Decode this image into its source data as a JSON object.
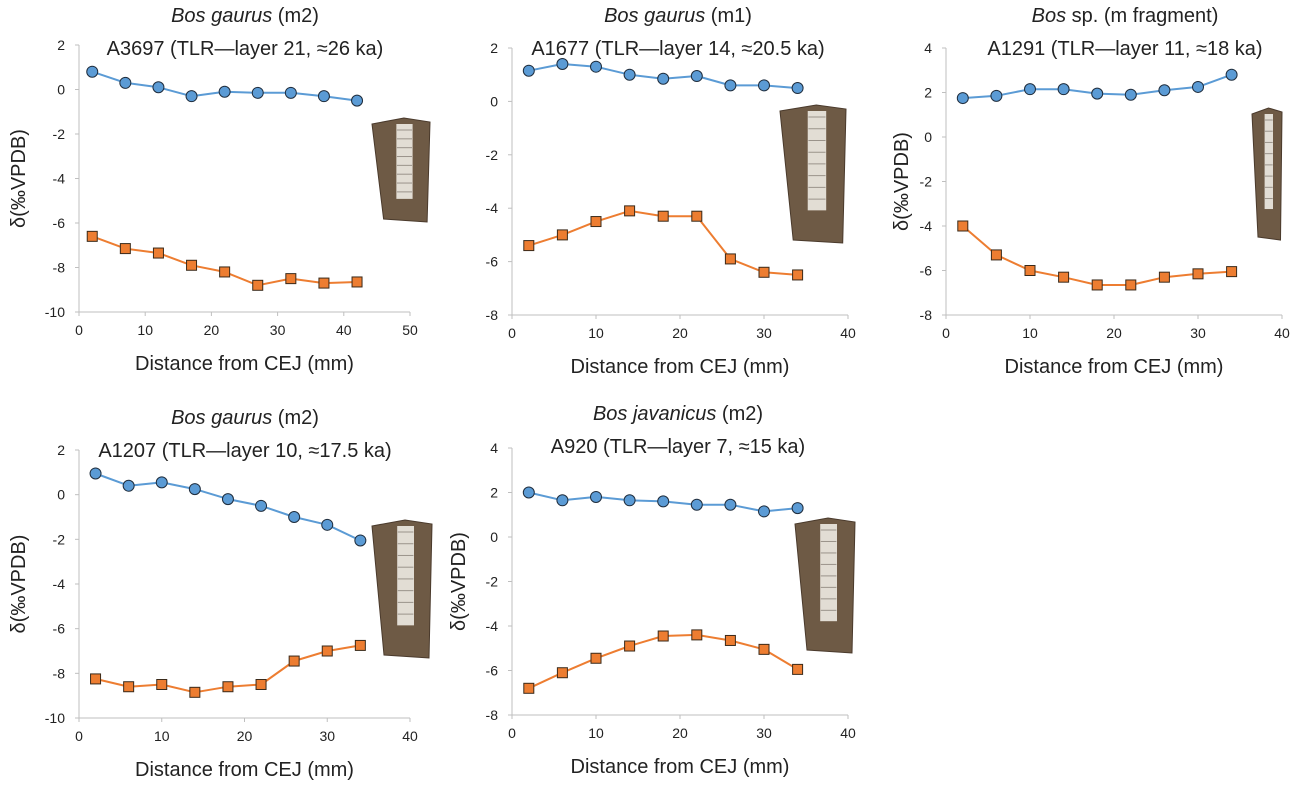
{
  "chart_data": [
    {
      "type": "line",
      "title_species": "Bos gaurus",
      "title_suffix": " (m2)",
      "subtitle": "A3697 (TLR—layer 21, ≈26 ka)",
      "xlabel": "Distance from CEJ (mm)",
      "ylabel": "δ(‰VPDB)",
      "xlim": [
        0,
        50
      ],
      "ylim": [
        -10,
        2
      ],
      "xticks": [
        0,
        10,
        20,
        30,
        40,
        50
      ],
      "yticks": [
        -10,
        -8,
        -6,
        -4,
        -2,
        0,
        2
      ],
      "x": [
        2,
        7,
        12,
        17,
        22,
        27,
        32,
        37,
        42
      ],
      "series": [
        {
          "marker": "circle",
          "color": "#5b9bd5",
          "values": [
            0.8,
            0.3,
            0.1,
            -0.3,
            -0.1,
            -0.15,
            -0.15,
            -0.3,
            -0.5
          ]
        },
        {
          "marker": "square",
          "color": "#ed7d31",
          "values": [
            -6.6,
            -7.15,
            -7.35,
            -7.9,
            -8.2,
            -8.8,
            -8.5,
            -8.7,
            -8.65
          ]
        }
      ]
    },
    {
      "type": "line",
      "title_species": "Bos gaurus",
      "title_suffix": " (m1)",
      "subtitle": "A1677 (TLR—layer 14, ≈20.5 ka)",
      "xlabel": "Distance from CEJ (mm)",
      "ylabel": "",
      "xlim": [
        0,
        40
      ],
      "ylim": [
        -8,
        2
      ],
      "xticks": [
        0,
        10,
        20,
        30,
        40
      ],
      "yticks": [
        -8,
        -6,
        -4,
        -2,
        0,
        2
      ],
      "x": [
        2,
        6,
        10,
        14,
        18,
        22,
        26,
        30,
        34
      ],
      "series": [
        {
          "marker": "circle",
          "color": "#5b9bd5",
          "values": [
            1.15,
            1.4,
            1.3,
            1.0,
            0.85,
            0.95,
            0.6,
            0.6,
            0.5
          ]
        },
        {
          "marker": "square",
          "color": "#ed7d31",
          "values": [
            -5.4,
            -5.0,
            -4.5,
            -4.1,
            -4.3,
            -4.3,
            -5.9,
            -6.4,
            -6.5
          ]
        }
      ]
    },
    {
      "type": "line",
      "title_species": "Bos",
      "title_suffix": " sp. (m fragment)",
      "subtitle": "A1291 (TLR—layer 11, ≈18 ka)",
      "xlabel": "Distance from CEJ (mm)",
      "ylabel": "δ(‰VPDB)",
      "xlim": [
        0,
        40
      ],
      "ylim": [
        -8,
        4
      ],
      "xticks": [
        0,
        10,
        20,
        30,
        40
      ],
      "yticks": [
        -8,
        -6,
        -4,
        -2,
        0,
        2,
        4
      ],
      "x": [
        2,
        6,
        10,
        14,
        18,
        22,
        26,
        30,
        34
      ],
      "series": [
        {
          "marker": "circle",
          "color": "#5b9bd5",
          "values": [
            1.75,
            1.85,
            2.15,
            2.15,
            1.95,
            1.9,
            2.1,
            2.25,
            2.8
          ]
        },
        {
          "marker": "square",
          "color": "#ed7d31",
          "values": [
            -4.0,
            -5.3,
            -6.0,
            -6.3,
            -6.65,
            -6.65,
            -6.3,
            -6.15,
            -6.05
          ]
        }
      ]
    },
    {
      "type": "line",
      "title_species": "Bos gaurus",
      "title_suffix": " (m2)",
      "subtitle": "A1207 (TLR—layer 10, ≈17.5 ka)",
      "xlabel": "Distance from CEJ (mm)",
      "ylabel": "δ(‰VPDB)",
      "xlim": [
        0,
        40
      ],
      "ylim": [
        -10,
        2
      ],
      "xticks": [
        0,
        10,
        20,
        30,
        40
      ],
      "yticks": [
        -10,
        -8,
        -6,
        -4,
        -2,
        0,
        2
      ],
      "x": [
        2,
        6,
        10,
        14,
        18,
        22,
        26,
        30,
        34
      ],
      "series": [
        {
          "marker": "circle",
          "color": "#5b9bd5",
          "values": [
            0.95,
            0.4,
            0.55,
            0.25,
            -0.2,
            -0.5,
            -1.0,
            -1.35,
            -2.05
          ]
        },
        {
          "marker": "square",
          "color": "#ed7d31",
          "values": [
            -8.25,
            -8.6,
            -8.5,
            -8.85,
            -8.6,
            -8.5,
            -7.45,
            -7.0,
            -6.75
          ]
        }
      ]
    },
    {
      "type": "line",
      "title_species": "Bos javanicus",
      "title_suffix": " (m2)",
      "subtitle": "A920 (TLR—layer 7, ≈15 ka)",
      "xlabel": "Distance from CEJ (mm)",
      "ylabel": "δ(‰VPDB)",
      "xlim": [
        0,
        40
      ],
      "ylim": [
        -8,
        4
      ],
      "xticks": [
        0,
        10,
        20,
        30,
        40
      ],
      "yticks": [
        -8,
        -6,
        -4,
        -2,
        0,
        2,
        4
      ],
      "x": [
        2,
        6,
        10,
        14,
        18,
        22,
        26,
        30,
        34
      ],
      "series": [
        {
          "marker": "circle",
          "color": "#5b9bd5",
          "values": [
            2.0,
            1.65,
            1.8,
            1.65,
            1.6,
            1.45,
            1.45,
            1.15,
            1.3
          ]
        },
        {
          "marker": "square",
          "color": "#ed7d31",
          "values": [
            -6.8,
            -6.1,
            -5.45,
            -4.9,
            -4.45,
            -4.4,
            -4.65,
            -5.05,
            -5.95
          ]
        }
      ]
    }
  ],
  "colors": {
    "oxygen_series": "#5b9bd5",
    "carbon_series": "#ed7d31",
    "axis": "#bfbfbf"
  }
}
